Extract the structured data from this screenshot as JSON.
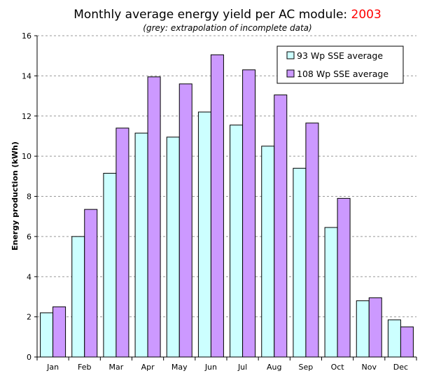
{
  "chart_data": {
    "type": "bar",
    "title": "Monthly average energy yield per AC module: ",
    "title_year": "2003",
    "subtitle": "(grey: extrapolation of incomplete data)",
    "xlabel": "",
    "ylabel": "Energy production (kWh)",
    "ylim": [
      0,
      16
    ],
    "y_ticks": [
      "0",
      "2",
      "4",
      "6",
      "8",
      "10",
      "12",
      "14",
      "16"
    ],
    "grid": "horizontal dashed",
    "legend_position": "top-right",
    "categories": [
      "Jan",
      "Feb",
      "Mar",
      "Apr",
      "May",
      "Jun",
      "Jul",
      "Aug",
      "Sep",
      "Oct",
      "Nov",
      "Dec"
    ],
    "series": [
      {
        "name": "93 Wp SSE average",
        "color": "#ccffff",
        "values": [
          2.2,
          6.0,
          9.15,
          11.15,
          10.95,
          12.2,
          11.55,
          10.5,
          9.4,
          6.45,
          2.8,
          1.85
        ]
      },
      {
        "name": "108 Wp SSE average",
        "color": "#cc99ff",
        "values": [
          2.5,
          7.35,
          11.4,
          13.95,
          13.6,
          15.05,
          14.3,
          13.05,
          11.65,
          7.9,
          2.95,
          1.5
        ]
      }
    ],
    "colors": {
      "year_highlight": "#ff0000",
      "axis": "#000000",
      "grid": "#999999"
    }
  }
}
